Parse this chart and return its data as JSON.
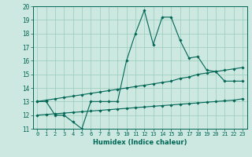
{
  "xlabel": "Humidex (Indice chaleur)",
  "bg_color": "#cce8e0",
  "grid_color": "#99ccbb",
  "line_color": "#006655",
  "xlim": [
    -0.5,
    23.5
  ],
  "ylim": [
    11,
    20
  ],
  "xticks": [
    0,
    1,
    2,
    3,
    4,
    5,
    6,
    7,
    8,
    9,
    10,
    11,
    12,
    13,
    14,
    15,
    16,
    17,
    18,
    19,
    20,
    21,
    22,
    23
  ],
  "yticks": [
    11,
    12,
    13,
    14,
    15,
    16,
    17,
    18,
    19,
    20
  ],
  "main_x": [
    0,
    1,
    2,
    3,
    4,
    5,
    6,
    7,
    8,
    9,
    10,
    11,
    12,
    13,
    14,
    15,
    16,
    17,
    18,
    19,
    20,
    21,
    22,
    23
  ],
  "main_y": [
    13,
    13,
    12,
    12,
    11.5,
    11,
    13,
    13,
    13,
    13,
    16,
    18,
    19.7,
    17.2,
    19.2,
    19.2,
    17.5,
    16.2,
    16.3,
    15.3,
    15.2,
    14.5,
    14.5,
    14.5
  ],
  "upper_x": [
    0,
    1,
    2,
    3,
    4,
    5,
    6,
    7,
    8,
    9,
    10,
    11,
    12,
    13,
    14,
    15,
    16,
    17,
    18,
    19,
    20,
    21,
    22,
    23
  ],
  "upper_y": [
    13.0,
    13.1,
    13.2,
    13.3,
    13.4,
    13.5,
    13.6,
    13.7,
    13.8,
    13.9,
    14.0,
    14.1,
    14.2,
    14.3,
    14.4,
    14.5,
    14.7,
    14.8,
    15.0,
    15.1,
    15.2,
    15.3,
    15.4,
    15.5
  ],
  "lower_x": [
    0,
    1,
    2,
    3,
    4,
    5,
    6,
    7,
    8,
    9,
    10,
    11,
    12,
    13,
    14,
    15,
    16,
    17,
    18,
    19,
    20,
    21,
    22,
    23
  ],
  "lower_y": [
    12.0,
    12.05,
    12.1,
    12.15,
    12.2,
    12.25,
    12.3,
    12.35,
    12.4,
    12.45,
    12.5,
    12.55,
    12.6,
    12.65,
    12.7,
    12.75,
    12.8,
    12.85,
    12.9,
    12.95,
    13.0,
    13.05,
    13.1,
    13.2
  ]
}
